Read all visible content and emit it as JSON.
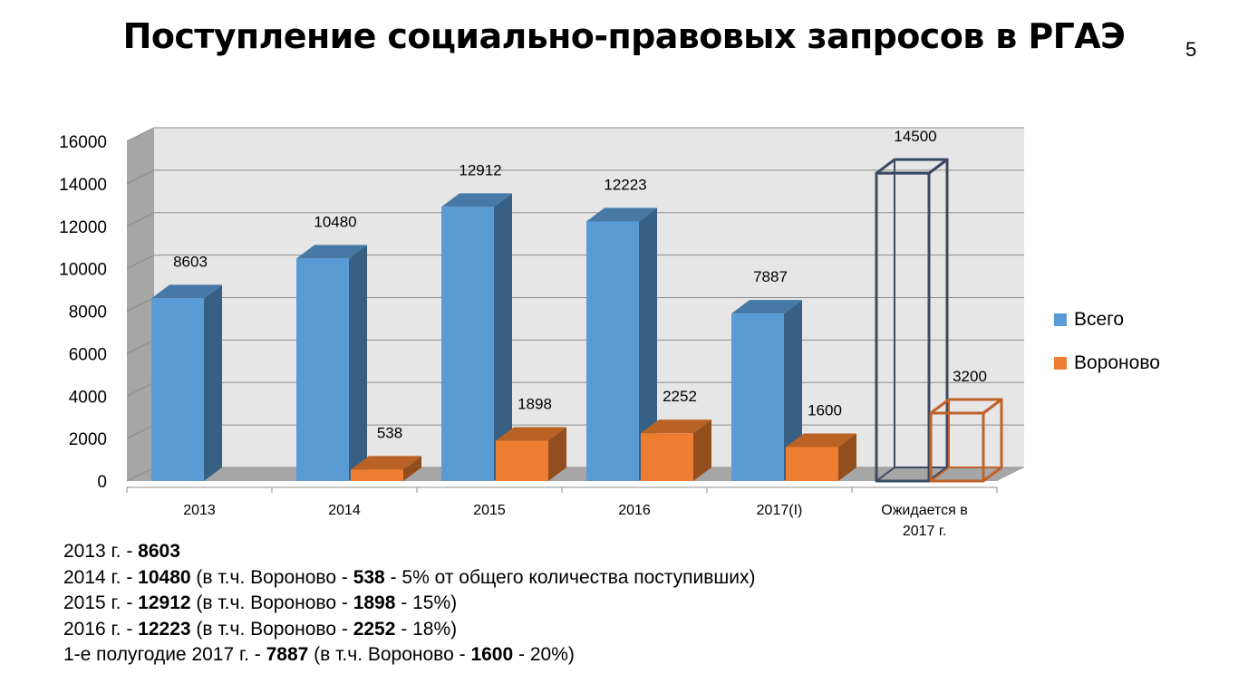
{
  "page": {
    "title": "Поступление социально-правовых запросов в РГАЭ",
    "page_number": "5"
  },
  "chart_data": {
    "type": "bar",
    "style": "3d-clustered-column",
    "categories": [
      "2013",
      "2014",
      "2015",
      "2016",
      "2017(I)",
      "Ожидается в 2017 г."
    ],
    "series": [
      {
        "name": "Всего",
        "color": "#5b9bd5",
        "values": [
          8603,
          10480,
          12912,
          12223,
          7887,
          14500
        ],
        "labels": [
          "8603",
          "10480",
          "12912",
          "12223",
          "7887",
          "14500"
        ]
      },
      {
        "name": "Вороново",
        "color": "#ed7d31",
        "values": [
          null,
          538,
          1898,
          2252,
          1600,
          3200
        ],
        "labels": [
          "",
          "538",
          "1898",
          "2252",
          "1600",
          "3200"
        ]
      }
    ],
    "forecast_category_style": "outline",
    "yticks": [
      "0",
      "2000",
      "4000",
      "6000",
      "8000",
      "10000",
      "12000",
      "14000",
      "16000"
    ],
    "ylim": [
      0,
      16000
    ],
    "grid": true,
    "legend_position": "right"
  },
  "notes": [
    {
      "parts": [
        {
          "t": "2013  г. - "
        },
        {
          "t": "8603",
          "b": true
        }
      ]
    },
    {
      "parts": [
        {
          "t": "2014  г. - "
        },
        {
          "t": "10480",
          "b": true
        },
        {
          "t": " (в т.ч. Вороново - "
        },
        {
          "t": "538",
          "b": true
        },
        {
          "t": " - 5% от общего количества поступивших)"
        }
      ]
    },
    {
      "parts": [
        {
          "t": "2015  г. - "
        },
        {
          "t": "12912",
          "b": true
        },
        {
          "t": " (в т.ч. Вороново - "
        },
        {
          "t": "1898",
          "b": true
        },
        {
          "t": " - 15%)"
        }
      ]
    },
    {
      "parts": [
        {
          "t": "2016  г. - "
        },
        {
          "t": "12223",
          "b": true
        },
        {
          "t": " (в т.ч. Вороново - "
        },
        {
          "t": "2252",
          "b": true
        },
        {
          "t": " - 18%)"
        }
      ]
    },
    {
      "parts": [
        {
          "t": "1-е полугодие 2017 г. - "
        },
        {
          "t": "7887",
          "b": true
        },
        {
          "t": " (в т.ч. Вороново - "
        },
        {
          "t": "1600",
          "b": true
        },
        {
          "t": " -  20%)"
        }
      ]
    }
  ]
}
